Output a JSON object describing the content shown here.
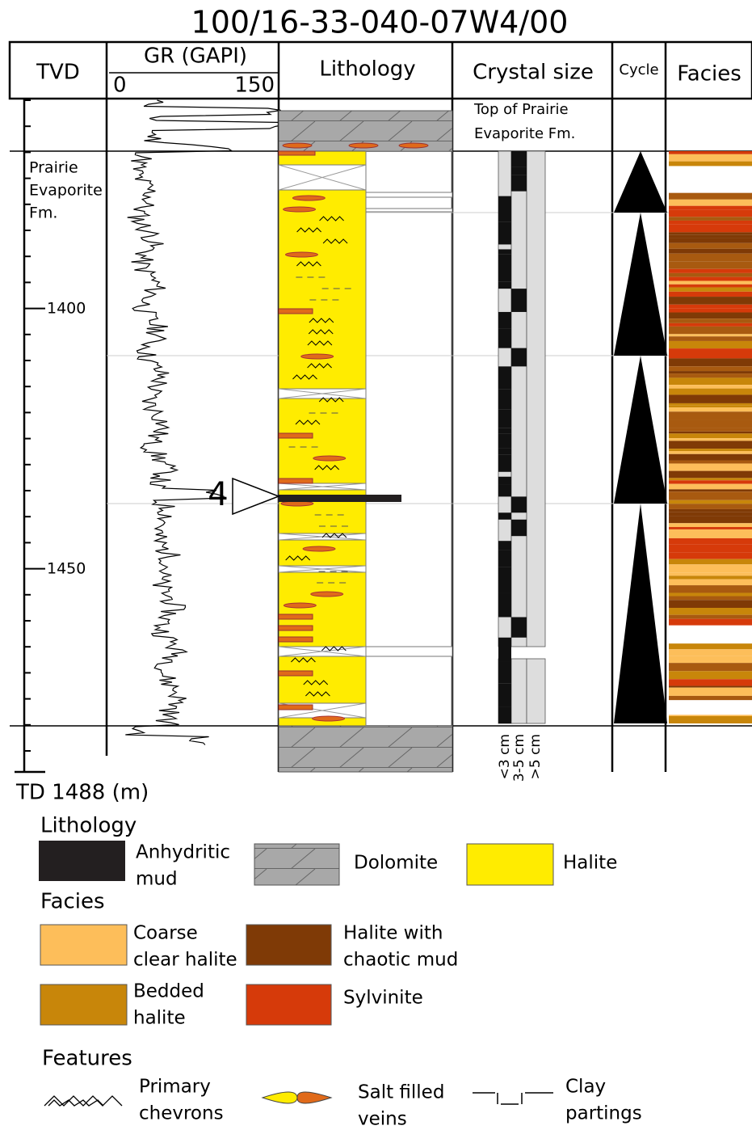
{
  "title": "100/16-33-040-07W4/00",
  "columns": {
    "tvd": "TVD",
    "gr": "GR (GAPI)",
    "gr_min": "0",
    "gr_max": "150",
    "lithology": "Lithology",
    "crystal_size": "Crystal size",
    "cycle": "Cycle",
    "facies": "Facies"
  },
  "annotations": {
    "top_formation": [
      "Top of Prairie",
      "Evaporite Fm."
    ],
    "formation": [
      "Prairie",
      "Evaporite",
      "Fm."
    ],
    "depth_1400": "1400",
    "depth_1450": "1450",
    "marker": "4",
    "total_depth": "TD 1488 (m)",
    "crystal_classes": [
      "<3 cm",
      "3-5 cm",
      ">5 cm"
    ]
  },
  "legend": {
    "lithology": {
      "heading": "Lithology",
      "items": [
        {
          "label": [
            "Anhydritic",
            "mud"
          ]
        },
        {
          "label": [
            "Dolomite"
          ]
        },
        {
          "label": [
            "Halite"
          ]
        }
      ]
    },
    "facies": {
      "heading": "Facies",
      "items": [
        {
          "label": [
            "Coarse",
            "clear halite"
          ]
        },
        {
          "label": [
            "Halite with",
            "chaotic mud"
          ]
        },
        {
          "label": [
            "Bedded",
            "halite"
          ]
        },
        {
          "label": [
            "Sylvinite"
          ]
        }
      ]
    },
    "features": {
      "heading": "Features",
      "items": [
        {
          "label": [
            "Primary",
            "chevrons"
          ]
        },
        {
          "label": [
            "Salt filled",
            "veins"
          ]
        },
        {
          "label": [
            "Clay",
            "partings"
          ]
        }
      ]
    }
  }
}
